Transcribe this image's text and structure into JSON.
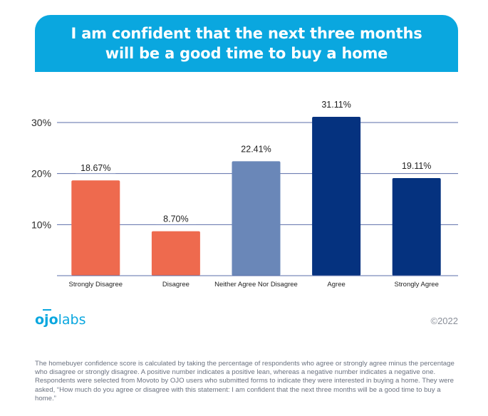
{
  "title": {
    "line1": "I am confident that the next three months",
    "line2": "will be a good time to buy a home"
  },
  "chart_data": {
    "type": "bar",
    "categories": [
      "Strongly Disagree",
      "Disagree",
      "Neither Agree Nor Disagree",
      "Agree",
      "Strongly Agree"
    ],
    "values": [
      18.67,
      8.7,
      22.41,
      31.11,
      19.11
    ],
    "value_labels": [
      "18.67%",
      "8.70%",
      "22.41%",
      "31.11%",
      "19.11%"
    ],
    "bar_colors": [
      "#ee6a4e",
      "#ee6a4e",
      "#6a87b8",
      "#05327f",
      "#05327f"
    ],
    "yticks": [
      10,
      20,
      30
    ],
    "ytick_labels": [
      "10%",
      "20%",
      "30%"
    ],
    "ylim": [
      0,
      30
    ],
    "grid": true,
    "xlabel": "",
    "ylabel": ""
  },
  "branding": {
    "logo_text_1": "ojo",
    "logo_text_2": "labs",
    "copyright": "©2022",
    "accent_color": "#0aa7df"
  },
  "footnote": "The homebuyer confidence score is calculated by taking the percentage of respondents who agree or strongly agree minus the percentage who disagree or strongly disagree. A positive number indicates a positive lean, whereas a negative number indicates a negative one. Respondents were selected from Movoto by OJO users who submitted forms to indicate they were interested in buying a home. They were asked, “How much do you agree or disagree with this statement: I am confident that the next three months will be a good time to buy a home.”"
}
